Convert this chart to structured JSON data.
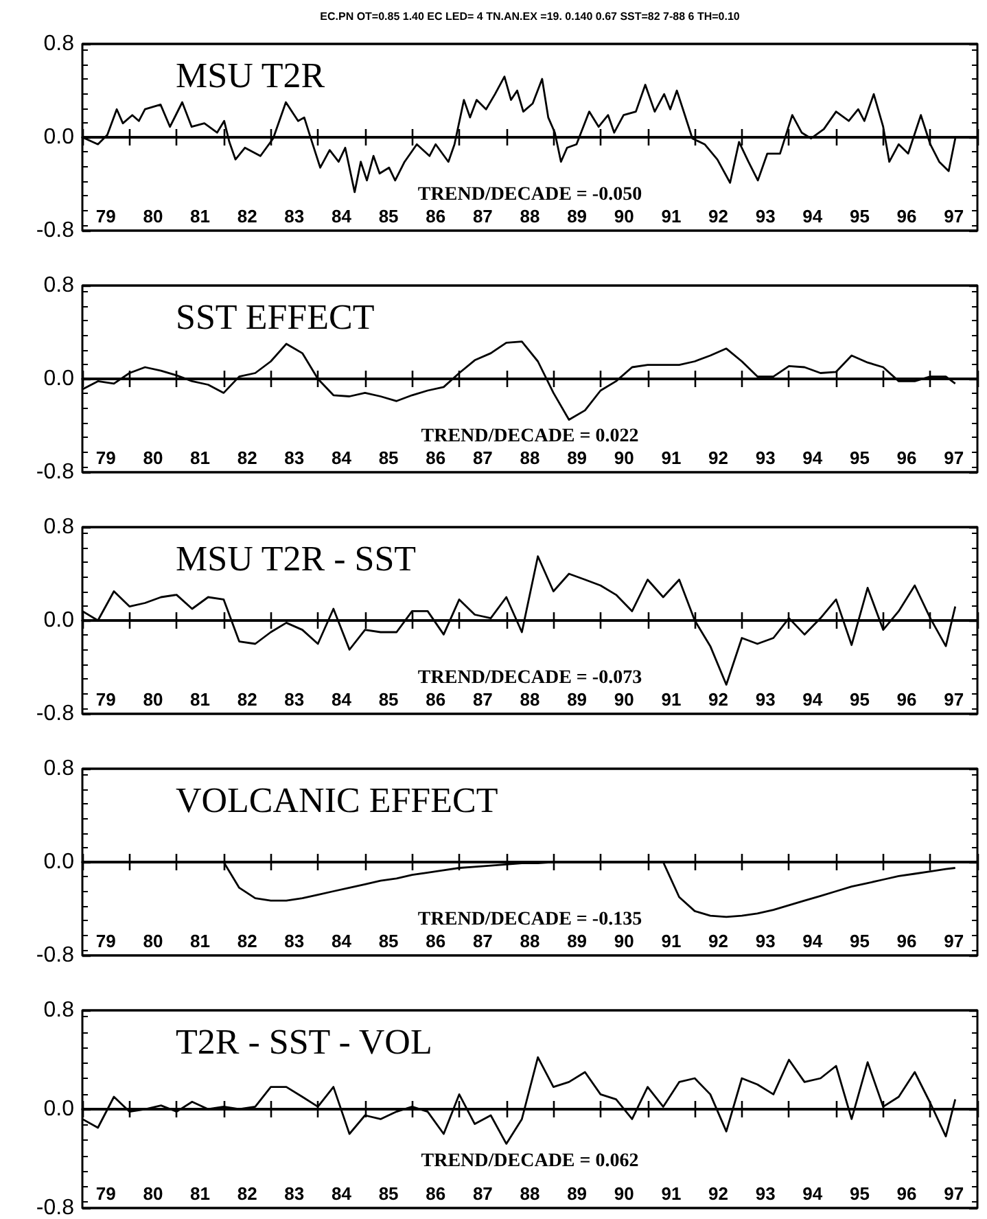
{
  "chart_data": [
    {
      "type": "line",
      "title": "MSU T2R",
      "subtitle": "EC.PN OT=0.85 1.40 EC LED= 4 TN.AN.EX =19. 0.140 0.67 SST=82 7-88 6 TH=0.10",
      "annotations": [
        "TREND/DECADE = -0.050"
      ],
      "x": [
        78.5,
        78.83,
        79.03,
        79.23,
        79.36,
        79.56,
        79.7,
        79.83,
        80.16,
        80.36,
        80.62,
        80.82,
        81.09,
        81.36,
        81.51,
        81.62,
        81.75,
        81.95,
        82.28,
        82.55,
        82.82,
        83.08,
        83.21,
        83.35,
        83.55,
        83.75,
        83.94,
        84.08,
        84.28,
        84.41,
        84.54,
        84.68,
        84.81,
        85.01,
        85.14,
        85.34,
        85.6,
        85.87,
        86.0,
        86.27,
        86.4,
        86.6,
        86.73,
        86.87,
        87.07,
        87.26,
        87.46,
        87.6,
        87.73,
        87.86,
        88.06,
        88.26,
        88.39,
        88.53,
        88.66,
        88.79,
        88.99,
        89.26,
        89.46,
        89.66,
        89.79,
        89.99,
        90.25,
        90.45,
        90.65,
        90.85,
        90.98,
        91.12,
        91.25,
        91.45,
        91.71,
        91.98,
        92.25,
        92.44,
        92.64,
        92.84,
        93.04,
        93.31,
        93.57,
        93.77,
        93.97,
        94.24,
        94.5,
        94.77,
        94.97,
        95.1,
        95.3,
        95.5,
        95.63,
        95.83,
        96.03,
        96.3,
        96.5,
        96.69,
        96.89,
        97.03
      ],
      "series": [
        {
          "color": "#000000",
          "values": [
            0,
            -0.06,
            0.02,
            0.24,
            0.12,
            0.19,
            0.14,
            0.24,
            0.28,
            0.09,
            0.3,
            0.09,
            0.12,
            0.04,
            0.14,
            -0.04,
            -0.19,
            -0.09,
            -0.16,
            -0.01,
            0.3,
            0.14,
            0.17,
            -0.01,
            -0.26,
            -0.11,
            -0.21,
            -0.09,
            -0.47,
            -0.21,
            -0.37,
            -0.16,
            -0.31,
            -0.26,
            -0.37,
            -0.21,
            -0.06,
            -0.16,
            -0.06,
            -0.21,
            -0.06,
            0.32,
            0.17,
            0.32,
            0.24,
            0.37,
            0.52,
            0.32,
            0.4,
            0.22,
            0.29,
            0.5,
            0.17,
            0.04,
            -0.21,
            -0.09,
            -0.06,
            0.22,
            0.09,
            0.19,
            0.04,
            0.19,
            0.22,
            0.45,
            0.22,
            0.37,
            0.24,
            0.4,
            0.24,
            -0.01,
            -0.06,
            -0.19,
            -0.39,
            -0.04,
            -0.21,
            -0.37,
            -0.14,
            -0.14,
            0.19,
            0.04,
            -0.01,
            0.07,
            0.22,
            0.14,
            0.24,
            0.14,
            0.37,
            0.09,
            -0.21,
            -0.06,
            -0.14,
            0.19,
            -0.06,
            -0.21,
            -0.29,
            -0.01
          ]
        }
      ],
      "xlim": [
        78.5,
        97.5
      ],
      "xticks": [
        79,
        80,
        81,
        82,
        83,
        84,
        85,
        86,
        87,
        88,
        89,
        90,
        91,
        92,
        93,
        94,
        95,
        96,
        97,
        {
          "value": 78.5,
          "label": null
        },
        {
          "value": 79.5,
          "label": null
        },
        {
          "value": 80.5,
          "label": null
        },
        {
          "value": 81.5,
          "label": null
        },
        {
          "value": 82.5,
          "label": null
        },
        {
          "value": 83.5,
          "label": null
        },
        {
          "value": 84.5,
          "label": null
        },
        {
          "value": 85.5,
          "label": null
        },
        {
          "value": 86.5,
          "label": null
        },
        {
          "value": 87.5,
          "label": null
        },
        {
          "value": 88.5,
          "label": null
        },
        {
          "value": 89.5,
          "label": null
        },
        {
          "value": 90.5,
          "label": null
        },
        {
          "value": 91.5,
          "label": null
        },
        {
          "value": 92.5,
          "label": null
        },
        {
          "value": 93.5,
          "label": null
        },
        {
          "value": 94.5,
          "label": null
        },
        {
          "value": 95.5,
          "label": null
        },
        {
          "value": 96.5,
          "label": null
        },
        {
          "value": 97.5,
          "label": null
        }
      ],
      "ylim": [
        -0.8,
        0.8
      ],
      "yticks": [
        {
          "value": 0.8,
          "label": "0.8"
        },
        {
          "value": 0,
          "label": "0.0"
        },
        {
          "value": -0.8,
          "label": "-0.8"
        }
      ],
      "grid": "y"
    },
    {
      "type": "line",
      "title": "SST EFFECT",
      "annotations": [
        "TREND/DECADE = 0.022"
      ],
      "x": [
        78.5,
        78.83,
        79.17,
        79.5,
        79.83,
        80.17,
        80.5,
        80.83,
        81.17,
        81.5,
        81.83,
        82.17,
        82.5,
        82.83,
        83.17,
        83.5,
        83.83,
        84.17,
        84.5,
        84.83,
        85.17,
        85.5,
        85.83,
        86.17,
        86.5,
        86.83,
        87.17,
        87.5,
        87.83,
        88.17,
        88.5,
        88.83,
        89.17,
        89.5,
        89.83,
        90.17,
        90.5,
        90.83,
        91.17,
        91.5,
        91.83,
        92.17,
        92.5,
        92.83,
        93.17,
        93.5,
        93.83,
        94.17,
        94.5,
        94.83,
        95.17,
        95.5,
        95.83,
        96.17,
        96.5,
        96.83,
        97.03
      ],
      "series": [
        {
          "color": "#000000",
          "values": [
            -0.09,
            -0.02,
            -0.04,
            0.05,
            0.1,
            0.07,
            0.03,
            -0.02,
            -0.05,
            -0.12,
            0.02,
            0.05,
            0.15,
            0.3,
            0.22,
            0.0,
            -0.14,
            -0.15,
            -0.12,
            -0.15,
            -0.19,
            -0.14,
            -0.1,
            -0.07,
            0.05,
            0.16,
            0.22,
            0.31,
            0.32,
            0.15,
            -0.12,
            -0.35,
            -0.27,
            -0.1,
            -0.02,
            0.1,
            0.12,
            0.12,
            0.12,
            0.15,
            0.2,
            0.26,
            0.15,
            0.02,
            0.02,
            0.11,
            0.1,
            0.05,
            0.06,
            0.2,
            0.14,
            0.1,
            -0.02,
            -0.02,
            0.02,
            0.02,
            -0.04
          ]
        }
      ],
      "xlim": [
        78.5,
        97.5
      ],
      "xticks": [
        79,
        80,
        81,
        82,
        83,
        84,
        85,
        86,
        87,
        88,
        89,
        90,
        91,
        92,
        93,
        94,
        95,
        96,
        97,
        {
          "value": 78.5,
          "label": null
        },
        {
          "value": 79.5,
          "label": null
        },
        {
          "value": 80.5,
          "label": null
        },
        {
          "value": 81.5,
          "label": null
        },
        {
          "value": 82.5,
          "label": null
        },
        {
          "value": 83.5,
          "label": null
        },
        {
          "value": 84.5,
          "label": null
        },
        {
          "value": 85.5,
          "label": null
        },
        {
          "value": 86.5,
          "label": null
        },
        {
          "value": 87.5,
          "label": null
        },
        {
          "value": 88.5,
          "label": null
        },
        {
          "value": 89.5,
          "label": null
        },
        {
          "value": 90.5,
          "label": null
        },
        {
          "value": 91.5,
          "label": null
        },
        {
          "value": 92.5,
          "label": null
        },
        {
          "value": 93.5,
          "label": null
        },
        {
          "value": 94.5,
          "label": null
        },
        {
          "value": 95.5,
          "label": null
        },
        {
          "value": 96.5,
          "label": null
        },
        {
          "value": 97.5,
          "label": null
        }
      ],
      "ylim": [
        -0.8,
        0.8
      ],
      "yticks": [
        {
          "value": 0.8,
          "label": "0.8"
        },
        {
          "value": 0,
          "label": "0.0"
        },
        {
          "value": -0.8,
          "label": "-0.8"
        }
      ],
      "grid": "y"
    },
    {
      "type": "line",
      "title": "MSU T2R - SST",
      "annotations": [
        "TREND/DECADE = -0.073"
      ],
      "x": [
        78.5,
        78.83,
        79.17,
        79.5,
        79.83,
        80.17,
        80.5,
        80.83,
        81.17,
        81.5,
        81.83,
        82.17,
        82.5,
        82.83,
        83.17,
        83.5,
        83.83,
        84.17,
        84.5,
        84.83,
        85.17,
        85.5,
        85.83,
        86.17,
        86.5,
        86.83,
        87.17,
        87.5,
        87.83,
        88.17,
        88.5,
        88.83,
        89.17,
        89.5,
        89.83,
        90.17,
        90.5,
        90.83,
        91.17,
        91.5,
        91.83,
        92.17,
        92.5,
        92.83,
        93.17,
        93.5,
        93.83,
        94.17,
        94.5,
        94.83,
        95.17,
        95.5,
        95.83,
        96.17,
        96.5,
        96.83,
        97.03
      ],
      "series": [
        {
          "color": "#000000",
          "values": [
            0.08,
            0.0,
            0.25,
            0.12,
            0.15,
            0.2,
            0.22,
            0.1,
            0.2,
            0.18,
            -0.18,
            -0.2,
            -0.1,
            -0.02,
            -0.08,
            -0.2,
            0.1,
            -0.25,
            -0.08,
            -0.1,
            -0.1,
            0.08,
            0.08,
            -0.12,
            0.18,
            0.05,
            0.02,
            0.2,
            -0.1,
            0.55,
            0.25,
            0.4,
            0.35,
            0.3,
            0.22,
            0.08,
            0.35,
            0.2,
            0.35,
            0.0,
            -0.22,
            -0.55,
            -0.15,
            -0.2,
            -0.15,
            0.02,
            -0.12,
            0.02,
            0.18,
            -0.21,
            0.28,
            -0.08,
            0.08,
            0.3,
            0.02,
            -0.22,
            0.12
          ]
        }
      ],
      "xlim": [
        78.5,
        97.5
      ],
      "xticks": [
        79,
        80,
        81,
        82,
        83,
        84,
        85,
        86,
        87,
        88,
        89,
        90,
        91,
        92,
        93,
        94,
        95,
        96,
        97,
        {
          "value": 78.5,
          "label": null
        },
        {
          "value": 79.5,
          "label": null
        },
        {
          "value": 80.5,
          "label": null
        },
        {
          "value": 81.5,
          "label": null
        },
        {
          "value": 82.5,
          "label": null
        },
        {
          "value": 83.5,
          "label": null
        },
        {
          "value": 84.5,
          "label": null
        },
        {
          "value": 85.5,
          "label": null
        },
        {
          "value": 86.5,
          "label": null
        },
        {
          "value": 87.5,
          "label": null
        },
        {
          "value": 88.5,
          "label": null
        },
        {
          "value": 89.5,
          "label": null
        },
        {
          "value": 90.5,
          "label": null
        },
        {
          "value": 91.5,
          "label": null
        },
        {
          "value": 92.5,
          "label": null
        },
        {
          "value": 93.5,
          "label": null
        },
        {
          "value": 94.5,
          "label": null
        },
        {
          "value": 95.5,
          "label": null
        },
        {
          "value": 96.5,
          "label": null
        },
        {
          "value": 97.5,
          "label": null
        }
      ],
      "ylim": [
        -0.8,
        0.8
      ],
      "yticks": [
        {
          "value": 0.8,
          "label": "0.8"
        },
        {
          "value": 0,
          "label": "0.0"
        },
        {
          "value": -0.8,
          "label": "-0.8"
        }
      ],
      "grid": "y"
    },
    {
      "type": "line",
      "title": "VOLCANIC EFFECT",
      "annotations": [
        "TREND/DECADE = -0.135"
      ],
      "x": [
        78.5,
        78.83,
        79.17,
        79.5,
        79.83,
        80.17,
        80.5,
        80.83,
        81.17,
        81.5,
        81.83,
        82.17,
        82.5,
        82.83,
        83.17,
        83.5,
        83.83,
        84.17,
        84.5,
        84.83,
        85.17,
        85.5,
        85.83,
        86.17,
        86.5,
        86.83,
        87.17,
        87.5,
        87.83,
        88.17,
        88.5,
        88.83,
        89.17,
        89.5,
        89.83,
        90.17,
        90.5,
        90.83,
        91.17,
        91.5,
        91.83,
        92.17,
        92.5,
        92.83,
        93.17,
        93.5,
        93.83,
        94.17,
        94.5,
        94.83,
        95.17,
        95.5,
        95.83,
        96.17,
        96.5,
        96.83,
        97.03
      ],
      "series": [
        {
          "color": "#000000",
          "values": [
            0,
            0,
            0,
            0,
            0,
            0,
            0,
            0,
            0,
            0,
            -0.22,
            -0.31,
            -0.33,
            -0.33,
            -0.31,
            -0.28,
            -0.25,
            -0.22,
            -0.19,
            -0.16,
            -0.14,
            -0.11,
            -0.09,
            -0.07,
            -0.05,
            -0.04,
            -0.03,
            -0.02,
            -0.01,
            -0.01,
            0,
            0,
            0,
            0,
            0,
            0,
            0,
            0,
            -0.3,
            -0.42,
            -0.46,
            -0.47,
            -0.46,
            -0.44,
            -0.41,
            -0.37,
            -0.33,
            -0.29,
            -0.25,
            -0.21,
            -0.18,
            -0.15,
            -0.12,
            -0.1,
            -0.08,
            -0.06,
            -0.05
          ]
        }
      ],
      "xlim": [
        78.5,
        97.5
      ],
      "xticks": [
        79,
        80,
        81,
        82,
        83,
        84,
        85,
        86,
        87,
        88,
        89,
        90,
        91,
        92,
        93,
        94,
        95,
        96,
        97,
        {
          "value": 78.5,
          "label": null
        },
        {
          "value": 79.5,
          "label": null
        },
        {
          "value": 80.5,
          "label": null
        },
        {
          "value": 81.5,
          "label": null
        },
        {
          "value": 82.5,
          "label": null
        },
        {
          "value": 83.5,
          "label": null
        },
        {
          "value": 84.5,
          "label": null
        },
        {
          "value": 85.5,
          "label": null
        },
        {
          "value": 86.5,
          "label": null
        },
        {
          "value": 87.5,
          "label": null
        },
        {
          "value": 88.5,
          "label": null
        },
        {
          "value": 89.5,
          "label": null
        },
        {
          "value": 90.5,
          "label": null
        },
        {
          "value": 91.5,
          "label": null
        },
        {
          "value": 92.5,
          "label": null
        },
        {
          "value": 93.5,
          "label": null
        },
        {
          "value": 94.5,
          "label": null
        },
        {
          "value": 95.5,
          "label": null
        },
        {
          "value": 96.5,
          "label": null
        },
        {
          "value": 97.5,
          "label": null
        }
      ],
      "ylim": [
        -0.8,
        0.8
      ],
      "yticks": [
        {
          "value": 0.8,
          "label": "0.8"
        },
        {
          "value": 0,
          "label": "0.0"
        },
        {
          "value": -0.8,
          "label": "-0.8"
        }
      ],
      "grid": "y"
    },
    {
      "type": "line",
      "title": "T2R - SST - VOL",
      "annotations": [
        "TREND/DECADE = 0.062"
      ],
      "x": [
        78.5,
        78.83,
        79.17,
        79.5,
        79.83,
        80.17,
        80.5,
        80.83,
        81.17,
        81.5,
        81.83,
        82.17,
        82.5,
        82.83,
        83.17,
        83.5,
        83.83,
        84.17,
        84.5,
        84.83,
        85.17,
        85.5,
        85.83,
        86.17,
        86.5,
        86.83,
        87.17,
        87.5,
        87.83,
        88.17,
        88.5,
        88.83,
        89.17,
        89.5,
        89.83,
        90.17,
        90.5,
        90.83,
        91.17,
        91.5,
        91.83,
        92.17,
        92.5,
        92.83,
        93.17,
        93.5,
        93.83,
        94.17,
        94.5,
        94.83,
        95.17,
        95.5,
        95.83,
        96.17,
        96.5,
        96.83,
        97.03
      ],
      "series": [
        {
          "color": "#000000",
          "values": [
            -0.08,
            -0.15,
            0.1,
            -0.02,
            0.0,
            0.03,
            -0.02,
            0.06,
            0.0,
            0.02,
            0.0,
            0.02,
            0.18,
            0.18,
            0.1,
            0.02,
            0.18,
            -0.2,
            -0.05,
            -0.08,
            -0.02,
            0.02,
            -0.02,
            -0.2,
            0.12,
            -0.12,
            -0.05,
            -0.28,
            -0.08,
            0.42,
            0.18,
            0.22,
            0.3,
            0.12,
            0.08,
            -0.08,
            0.18,
            0.02,
            0.22,
            0.25,
            0.12,
            -0.18,
            0.25,
            0.2,
            0.12,
            0.4,
            0.22,
            0.25,
            0.35,
            -0.08,
            0.38,
            0.02,
            0.1,
            0.3,
            0.05,
            -0.22,
            0.08
          ]
        }
      ],
      "xlim": [
        78.5,
        97.5
      ],
      "xticks": [
        79,
        80,
        81,
        82,
        83,
        84,
        85,
        86,
        87,
        88,
        89,
        90,
        91,
        92,
        93,
        94,
        95,
        96,
        97,
        {
          "value": 78.5,
          "label": null
        },
        {
          "value": 79.5,
          "label": null
        },
        {
          "value": 80.5,
          "label": null
        },
        {
          "value": 81.5,
          "label": null
        },
        {
          "value": 82.5,
          "label": null
        },
        {
          "value": 83.5,
          "label": null
        },
        {
          "value": 84.5,
          "label": null
        },
        {
          "value": 85.5,
          "label": null
        },
        {
          "value": 86.5,
          "label": null
        },
        {
          "value": 87.5,
          "label": null
        },
        {
          "value": 88.5,
          "label": null
        },
        {
          "value": 89.5,
          "label": null
        },
        {
          "value": 90.5,
          "label": null
        },
        {
          "value": 91.5,
          "label": null
        },
        {
          "value": 92.5,
          "label": null
        },
        {
          "value": 93.5,
          "label": null
        },
        {
          "value": 94.5,
          "label": null
        },
        {
          "value": 95.5,
          "label": null
        },
        {
          "value": 96.5,
          "label": null
        },
        {
          "value": 97.5,
          "label": null
        }
      ],
      "ylim": [
        -0.8,
        0.8
      ],
      "yticks": [
        {
          "value": 0.8,
          "label": "0.8"
        },
        {
          "value": 0,
          "label": "0.0"
        },
        {
          "value": -0.8,
          "label": "-0.8"
        }
      ],
      "grid": "y"
    }
  ]
}
